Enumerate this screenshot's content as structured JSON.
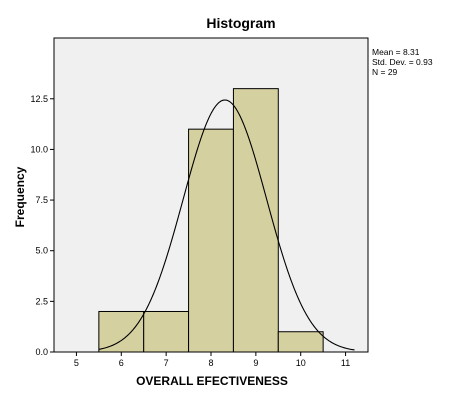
{
  "chart_data": {
    "type": "bar",
    "title": "Histogram",
    "xlabel": "OVERALL EFECTIVENESS",
    "ylabel": "Frequency",
    "bins": [
      {
        "start": 5.5,
        "end": 6.5,
        "count": 2
      },
      {
        "start": 6.5,
        "end": 7.5,
        "count": 2
      },
      {
        "start": 7.5,
        "end": 8.5,
        "count": 11
      },
      {
        "start": 8.5,
        "end": 9.5,
        "count": 13
      },
      {
        "start": 9.5,
        "end": 10.5,
        "count": 1
      }
    ],
    "xlim": [
      4.5,
      11.5
    ],
    "ylim": [
      0,
      15.5
    ],
    "x_ticks": [
      "5",
      "6",
      "7",
      "8",
      "9",
      "10",
      "11"
    ],
    "y_ticks": [
      "0.0",
      "2.5",
      "5.0",
      "7.5",
      "10.0",
      "12.5"
    ],
    "normal_curve": {
      "mean": 8.31,
      "sd": 0.93,
      "n": 29,
      "bin_width": 1
    },
    "stats": [
      "Mean = 8.31",
      "Std. Dev. = 0.93",
      "N = 29"
    ],
    "colors": {
      "bar_fill": "#d5d0a0",
      "plot_background": "#f0f0f0",
      "border": "#000000",
      "curve": "#000000"
    }
  }
}
